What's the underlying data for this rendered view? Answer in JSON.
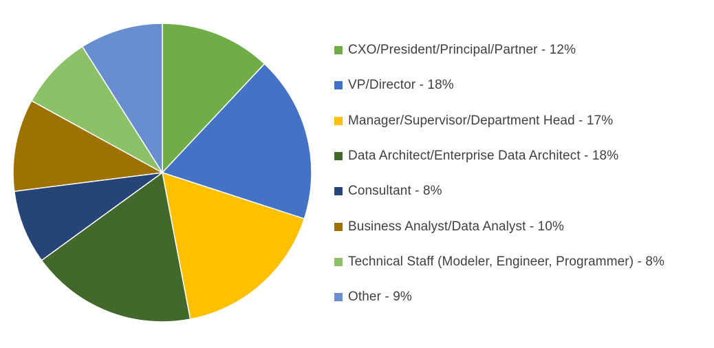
{
  "chart_data": {
    "type": "pie",
    "slices": [
      {
        "label": "CXO/President/Principal/Partner - 12%",
        "value": 12,
        "color": "#70ad47"
      },
      {
        "label": "VP/Director - 18%",
        "value": 18,
        "color": "#4472c4"
      },
      {
        "label": "Manager/Supervisor/Department Head - 17%",
        "value": 17,
        "color": "#ffc000"
      },
      {
        "label": "Data Architect/Enterprise Data Architect - 18%",
        "value": 18,
        "color": "#43682b"
      },
      {
        "label": "Consultant - 8%",
        "value": 8,
        "color": "#264478"
      },
      {
        "label": "Business Analyst/Data Analyst - 10%",
        "value": 10,
        "color": "#9e7200"
      },
      {
        "label": "Technical Staff (Modeler, Engineer, Programmer) - 8%",
        "value": 8,
        "color": "#8cc168"
      },
      {
        "label": "Other - 9%",
        "value": 9,
        "color": "#698ed0"
      }
    ],
    "legend_position": "right"
  }
}
